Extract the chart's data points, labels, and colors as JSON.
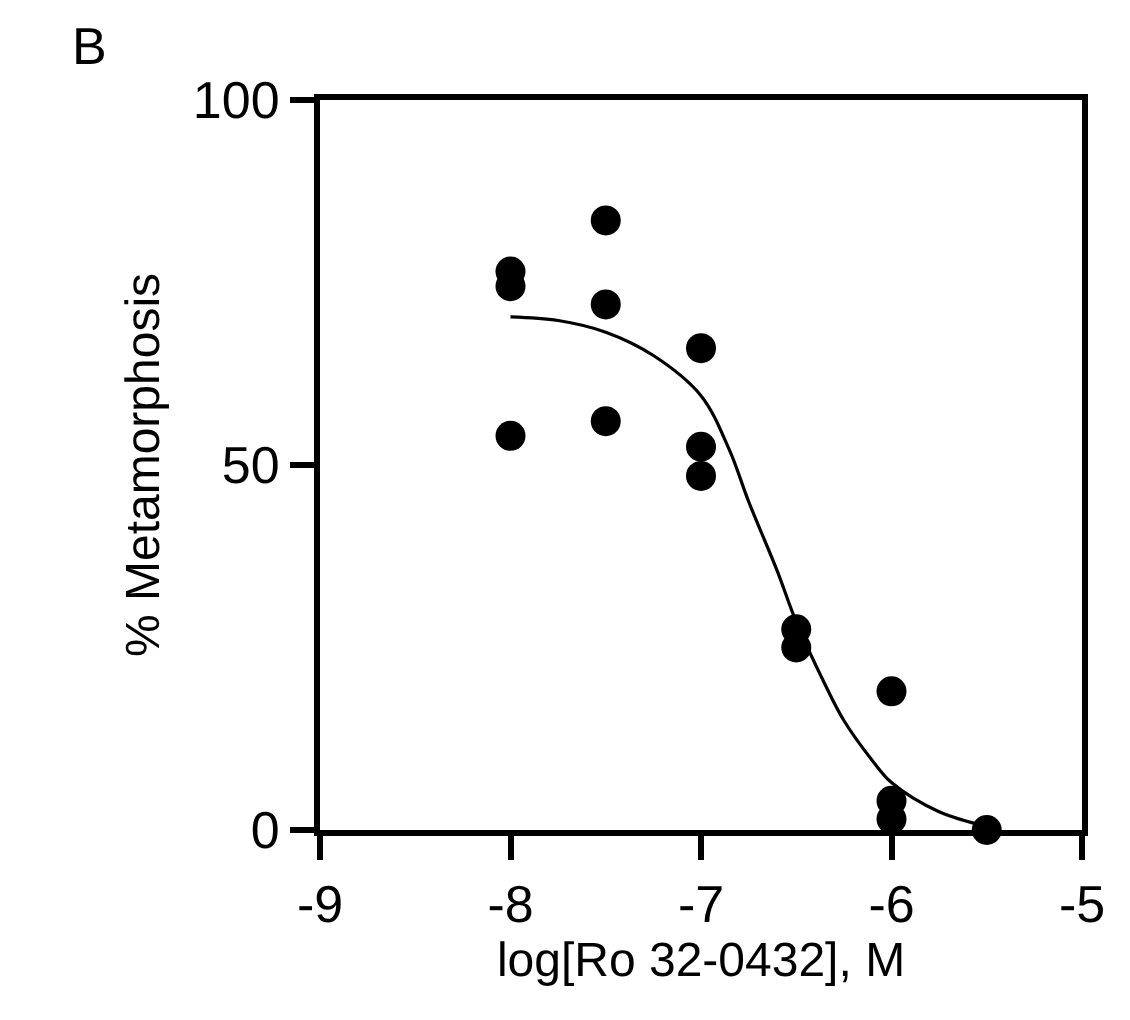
{
  "chart_data": {
    "type": "scatter",
    "xlabel": "log[Ro 32-0432], M",
    "ylabel": "% Metamorphosis",
    "annotations": [
      "B"
    ],
    "xlim": [
      -9,
      -5
    ],
    "xticks": [
      -9,
      -8,
      -7,
      -6,
      -5
    ],
    "ylim": [
      0,
      100
    ],
    "yticks": [
      0,
      50,
      100
    ],
    "marker": "circle",
    "series": [
      {
        "color": "#000000",
        "x": [
          -8,
          -8,
          -8,
          -7.5,
          -7.5,
          -7.5,
          -7,
          -7,
          -7,
          -6.5,
          -6.5,
          -6,
          -6,
          -6,
          -5.5
        ],
        "values": [
          76.5,
          74.5,
          54,
          83.5,
          72,
          56,
          66,
          52.5,
          48.5,
          27.5,
          25,
          19,
          4,
          1.5,
          0
        ]
      },
      {
        "type": "line",
        "color": "#000000",
        "marker": "none",
        "line_style": "solid",
        "x": [
          -8,
          -7.75,
          -7.5,
          -7.25,
          -7,
          -6.85,
          -6.75,
          -6.6,
          -6.5,
          -6.35,
          -6.25,
          -6.1,
          -6,
          -5.75,
          -5.5
        ],
        "values": [
          70.3,
          69.8,
          68.2,
          65,
          59.5,
          52,
          45,
          35.5,
          28.5,
          20,
          15,
          9.5,
          6.5,
          2.5,
          0.5
        ]
      }
    ]
  }
}
